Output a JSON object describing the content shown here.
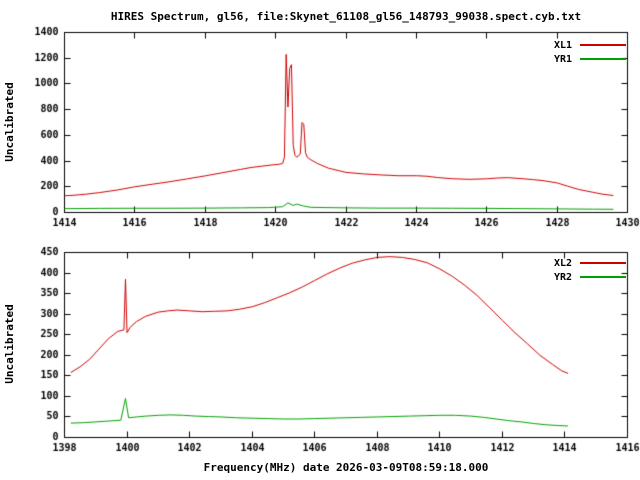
{
  "title": "HIRES Spectrum, gl56, file:Skynet_61108_gl56_148793_99038.spect.cyb.txt",
  "xlabel": "Frequency(MHz) date 2026-03-09T08:59:18.000",
  "colors": {
    "axis": "#000000",
    "background": "#ffffff",
    "red": "#cc0000",
    "green": "#00a000"
  },
  "chart_data": [
    {
      "type": "line",
      "panel": "top",
      "ylabel": "Uncalibrated",
      "xlim": [
        1414,
        1430
      ],
      "ylim": [
        0,
        1400
      ],
      "xticks": [
        1414,
        1416,
        1418,
        1420,
        1422,
        1424,
        1426,
        1428,
        1430
      ],
      "yticks": [
        0,
        200,
        400,
        600,
        800,
        1000,
        1200,
        1400
      ],
      "grid": false,
      "legend_position": "top-right",
      "series": [
        {
          "name": "XL1",
          "color": "#cc0000",
          "points": [
            [
              1414.0,
              130
            ],
            [
              1414.3,
              135
            ],
            [
              1414.6,
              142
            ],
            [
              1415.0,
              155
            ],
            [
              1415.5,
              175
            ],
            [
              1416.0,
              200
            ],
            [
              1416.5,
              220
            ],
            [
              1417.0,
              240
            ],
            [
              1417.5,
              262
            ],
            [
              1418.0,
              285
            ],
            [
              1418.5,
              310
            ],
            [
              1419.0,
              335
            ],
            [
              1419.3,
              350
            ],
            [
              1419.6,
              360
            ],
            [
              1419.9,
              370
            ],
            [
              1420.1,
              375
            ],
            [
              1420.2,
              382
            ],
            [
              1420.25,
              430
            ],
            [
              1420.3,
              1230
            ],
            [
              1420.35,
              820
            ],
            [
              1420.4,
              1120
            ],
            [
              1420.45,
              1150
            ],
            [
              1420.5,
              520
            ],
            [
              1420.55,
              445
            ],
            [
              1420.6,
              430
            ],
            [
              1420.7,
              455
            ],
            [
              1420.75,
              700
            ],
            [
              1420.8,
              685
            ],
            [
              1420.85,
              465
            ],
            [
              1420.9,
              430
            ],
            [
              1421.0,
              410
            ],
            [
              1421.2,
              380
            ],
            [
              1421.5,
              345
            ],
            [
              1421.8,
              325
            ],
            [
              1422.0,
              312
            ],
            [
              1422.5,
              300
            ],
            [
              1423.0,
              292
            ],
            [
              1423.5,
              286
            ],
            [
              1424.0,
              286
            ],
            [
              1424.3,
              282
            ],
            [
              1424.6,
              272
            ],
            [
              1425.0,
              263
            ],
            [
              1425.5,
              258
            ],
            [
              1426.0,
              262
            ],
            [
              1426.3,
              268
            ],
            [
              1426.6,
              271
            ],
            [
              1427.0,
              263
            ],
            [
              1427.3,
              256
            ],
            [
              1427.6,
              248
            ],
            [
              1428.0,
              230
            ],
            [
              1428.3,
              205
            ],
            [
              1428.6,
              180
            ],
            [
              1429.0,
              158
            ],
            [
              1429.3,
              142
            ],
            [
              1429.6,
              132
            ]
          ]
        },
        {
          "name": "YR1",
          "color": "#00a000",
          "points": [
            [
              1414.0,
              30
            ],
            [
              1415.0,
              32
            ],
            [
              1416.0,
              33
            ],
            [
              1417.0,
              33
            ],
            [
              1418.0,
              34
            ],
            [
              1419.0,
              36
            ],
            [
              1419.8,
              38
            ],
            [
              1420.2,
              45
            ],
            [
              1420.35,
              75
            ],
            [
              1420.5,
              55
            ],
            [
              1420.6,
              65
            ],
            [
              1420.8,
              50
            ],
            [
              1421.0,
              40
            ],
            [
              1422.0,
              36
            ],
            [
              1423.0,
              34
            ],
            [
              1424.0,
              34
            ],
            [
              1425.0,
              33
            ],
            [
              1426.0,
              32
            ],
            [
              1427.0,
              30
            ],
            [
              1428.0,
              28
            ],
            [
              1429.0,
              26
            ],
            [
              1429.6,
              25
            ]
          ]
        }
      ]
    },
    {
      "type": "line",
      "panel": "bottom",
      "ylabel": "Uncalibrated",
      "xlim": [
        1398,
        1416
      ],
      "ylim": [
        0,
        450
      ],
      "xticks": [
        1398,
        1400,
        1402,
        1404,
        1406,
        1408,
        1410,
        1412,
        1414,
        1416
      ],
      "yticks": [
        0,
        50,
        100,
        150,
        200,
        250,
        300,
        350,
        400,
        450
      ],
      "grid": false,
      "legend_position": "top-right",
      "series": [
        {
          "name": "XL2",
          "color": "#cc0000",
          "points": [
            [
              1398.2,
              158
            ],
            [
              1398.5,
              172
            ],
            [
              1398.8,
              190
            ],
            [
              1399.1,
              215
            ],
            [
              1399.4,
              240
            ],
            [
              1399.7,
              258
            ],
            [
              1399.9,
              262
            ],
            [
              1399.95,
              385
            ],
            [
              1400.0,
              255
            ],
            [
              1400.1,
              268
            ],
            [
              1400.3,
              282
            ],
            [
              1400.6,
              295
            ],
            [
              1401.0,
              305
            ],
            [
              1401.3,
              308
            ],
            [
              1401.6,
              310
            ],
            [
              1402.0,
              308
            ],
            [
              1402.4,
              306
            ],
            [
              1402.8,
              307
            ],
            [
              1403.2,
              308
            ],
            [
              1403.6,
              312
            ],
            [
              1404.0,
              318
            ],
            [
              1404.4,
              328
            ],
            [
              1404.8,
              340
            ],
            [
              1405.2,
              352
            ],
            [
              1405.6,
              366
            ],
            [
              1406.0,
              382
            ],
            [
              1406.4,
              398
            ],
            [
              1406.8,
              412
            ],
            [
              1407.2,
              424
            ],
            [
              1407.6,
              432
            ],
            [
              1408.0,
              438
            ],
            [
              1408.4,
              440
            ],
            [
              1408.8,
              438
            ],
            [
              1409.2,
              433
            ],
            [
              1409.6,
              425
            ],
            [
              1410.0,
              410
            ],
            [
              1410.4,
              392
            ],
            [
              1410.8,
              370
            ],
            [
              1411.2,
              345
            ],
            [
              1411.6,
              315
            ],
            [
              1412.0,
              285
            ],
            [
              1412.4,
              255
            ],
            [
              1412.8,
              228
            ],
            [
              1413.2,
              200
            ],
            [
              1413.6,
              178
            ],
            [
              1413.9,
              162
            ],
            [
              1414.1,
              156
            ]
          ]
        },
        {
          "name": "YR2",
          "color": "#00a000",
          "points": [
            [
              1398.2,
              35
            ],
            [
              1398.6,
              36
            ],
            [
              1399.0,
              38
            ],
            [
              1399.4,
              40
            ],
            [
              1399.8,
              42
            ],
            [
              1399.95,
              95
            ],
            [
              1400.05,
              48
            ],
            [
              1400.3,
              50
            ],
            [
              1400.6,
              52
            ],
            [
              1401.0,
              54
            ],
            [
              1401.4,
              55
            ],
            [
              1401.8,
              54
            ],
            [
              1402.2,
              52
            ],
            [
              1402.6,
              51
            ],
            [
              1403.0,
              50
            ],
            [
              1403.5,
              48
            ],
            [
              1404.0,
              47
            ],
            [
              1404.5,
              46
            ],
            [
              1405.0,
              45
            ],
            [
              1405.5,
              45
            ],
            [
              1406.0,
              46
            ],
            [
              1406.5,
              47
            ],
            [
              1407.0,
              48
            ],
            [
              1407.5,
              49
            ],
            [
              1408.0,
              50
            ],
            [
              1408.5,
              51
            ],
            [
              1409.0,
              52
            ],
            [
              1409.5,
              53
            ],
            [
              1410.0,
              54
            ],
            [
              1410.5,
              54
            ],
            [
              1411.0,
              52
            ],
            [
              1411.4,
              49
            ],
            [
              1411.8,
              45
            ],
            [
              1412.2,
              41
            ],
            [
              1412.6,
              38
            ],
            [
              1413.0,
              34
            ],
            [
              1413.4,
              31
            ],
            [
              1413.8,
              29
            ],
            [
              1414.1,
              28
            ]
          ]
        }
      ]
    }
  ]
}
